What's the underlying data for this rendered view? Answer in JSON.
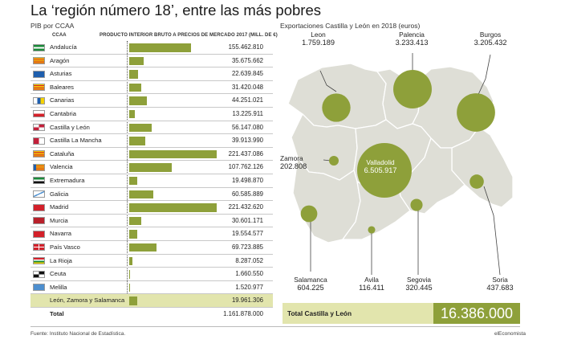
{
  "title": "La ‘región número 18’, entre las más pobres",
  "left_subtitle": "PIB por CCAA",
  "right_subtitle": "Exportaciones Castilla y León en 2018 (euros)",
  "table_headers": {
    "region": "CCAA",
    "value": "PRODUCTO INTERIOR BRUTO A PRECIOS DE MERCADO 2017 (MILL. DE €)"
  },
  "chart_data": [
    {
      "type": "bar",
      "orientation": "horizontal",
      "title": "PIB por CCAA",
      "xlabel": "PRODUCTO INTERIOR BRUTO A PRECIOS DE MERCADO 2017 (MILL. DE €)",
      "categories": [
        "Andalucía",
        "Aragón",
        "Asturias",
        "Baleares",
        "Canarias",
        "Cantabria",
        "Castilla y León",
        "Castilla La Mancha",
        "Cataluña",
        "Valencia",
        "Extremadura",
        "Galicia",
        "Madrid",
        "Murcia",
        "Navarra",
        "País Vasco",
        "La Rioja",
        "Ceuta",
        "Melilla",
        "León, Zamora y Salamanca",
        "Total"
      ],
      "value_labels": [
        "155.462.810",
        "35.675.662",
        "22.639.845",
        "31.420.048",
        "44.251.021",
        "13.225.911",
        "56.147.080",
        "39.913.990",
        "221.437.086",
        "107.762.126",
        "19.498.870",
        "60.585.889",
        "221.432.620",
        "30.601.171",
        "19.554.577",
        "69.723.885",
        "8.287.052",
        "1.660.550",
        "1.520.977",
        "19.961.306",
        "1.161.878.000"
      ],
      "values": [
        155462810,
        35675662,
        22639845,
        31420048,
        44251021,
        13225911,
        56147080,
        39913990,
        221437086,
        107762126,
        19498870,
        60585889,
        221432620,
        30601171,
        19554577,
        69723885,
        8287052,
        1660550,
        1520977,
        19961306,
        1161878000
      ],
      "highlight": "León, Zamora y Salamanca",
      "bar_color": "#8ea03a",
      "highlight_color": "#e2e5ad"
    },
    {
      "type": "bubble-map",
      "title": "Exportaciones Castilla y León en 2018 (euros)",
      "provinces": [
        {
          "name": "Leon",
          "label": "1.759.189",
          "value": 1759189
        },
        {
          "name": "Palencia",
          "label": "3.233.413",
          "value": 3233413
        },
        {
          "name": "Burgos",
          "label": "3.205.432",
          "value": 3205432
        },
        {
          "name": "Zamora",
          "label": "202.808",
          "value": 202808
        },
        {
          "name": "Valladolid",
          "label": "6.505.917",
          "value": 6505917
        },
        {
          "name": "Soria",
          "label": "437.683",
          "value": 437683
        },
        {
          "name": "Salamanca",
          "label": "604.225",
          "value": 604225
        },
        {
          "name": "Segovia",
          "label": "320.445",
          "value": 320445
        },
        {
          "name": "Avila",
          "label": "116.411",
          "value": 116411
        }
      ],
      "total_label": "Total Castilla y León",
      "total_value": "16.386.000"
    }
  ],
  "footer": {
    "source": "Fuente: Instituto Nacional de Estadística.",
    "brand": "elEconomista"
  },
  "colors": {
    "accent": "#8ea03a",
    "highlight": "#e2e5ad",
    "map_fill": "#deded6"
  }
}
